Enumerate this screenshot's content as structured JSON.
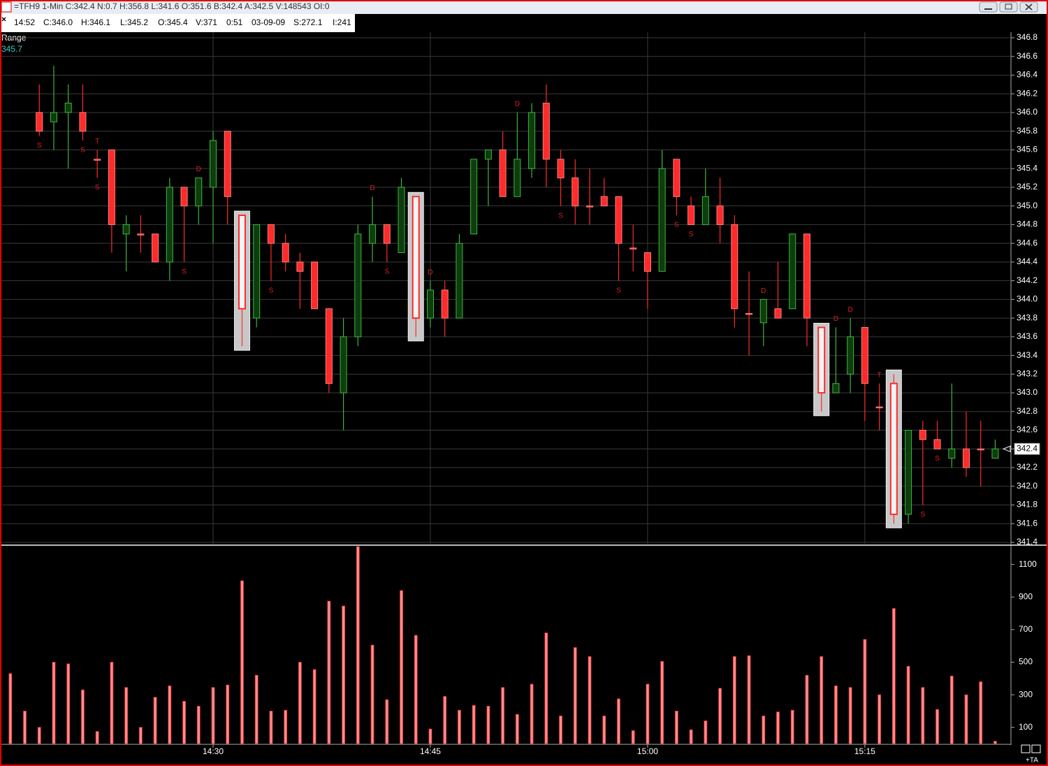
{
  "window": {
    "title": "=TFH9 1-Min C:342.4 N:0.7 H:356.8 L:341.6 O:351.6 B:342.4 A:342.5 V:148543 OI:0"
  },
  "info_bar": [
    "14:52",
    "C:346.0",
    "H:346.1",
    "L:345.2",
    "O:345.4",
    "V:371",
    "0:51",
    "03-09-09",
    "S:272.1",
    "I:241"
  ],
  "indicator": {
    "name": "Range",
    "value": 345.7
  },
  "footer": "+TA",
  "chart_data": [
    {
      "type": "candlestick",
      "open": [
        null,
        null,
        346.0,
        345.9,
        346.0,
        346.0,
        345.5,
        345.6,
        344.7,
        344.7,
        344.7,
        344.4,
        345.2,
        345.0,
        345.2,
        345.8,
        344.9,
        343.8,
        344.8,
        344.6,
        344.4,
        344.4,
        343.9,
        343.0,
        343.6,
        344.6,
        344.8,
        344.5,
        345.1,
        343.8,
        344.1,
        343.8,
        344.7,
        345.5,
        345.6,
        345.1,
        345.4,
        346.1,
        345.5,
        345.3,
        345.0,
        345.1,
        345.1,
        344.55,
        344.5,
        344.3,
        345.5,
        345.0,
        344.8,
        345.0,
        344.8,
        343.85,
        343.75,
        343.9,
        343.9,
        344.7,
        343.7,
        343.0,
        343.2,
        343.7,
        342.85,
        343.1,
        341.7,
        342.6,
        342.5,
        342.3,
        342.4,
        342.4,
        342.3
      ],
      "high": [
        null,
        null,
        346.3,
        346.5,
        346.3,
        346.3,
        345.6,
        345.6,
        344.9,
        344.9,
        344.7,
        345.3,
        345.2,
        345.3,
        345.8,
        345.8,
        344.9,
        344.8,
        344.8,
        344.7,
        344.5,
        344.4,
        343.9,
        343.8,
        344.8,
        345.1,
        344.8,
        345.3,
        345.1,
        344.2,
        344.2,
        344.7,
        345.5,
        345.6,
        345.8,
        346.0,
        346.1,
        346.3,
        345.6,
        345.5,
        345.4,
        345.3,
        345.1,
        344.8,
        344.5,
        345.6,
        345.5,
        345.1,
        345.4,
        345.3,
        344.9,
        344.3,
        344.0,
        344.4,
        344.7,
        344.7,
        343.7,
        343.7,
        343.8,
        343.7,
        343.1,
        343.2,
        342.6,
        342.7,
        342.7,
        343.1,
        342.8,
        342.7,
        342.5
      ],
      "low": [
        null,
        null,
        345.75,
        345.6,
        345.4,
        345.7,
        345.3,
        344.5,
        344.3,
        344.5,
        344.4,
        344.2,
        344.4,
        344.8,
        344.6,
        344.8,
        343.5,
        343.7,
        344.2,
        344.3,
        343.9,
        343.9,
        343.0,
        342.6,
        343.5,
        344.4,
        344.4,
        344.5,
        343.6,
        343.7,
        343.6,
        343.8,
        344.7,
        345.0,
        345.1,
        345.1,
        345.3,
        345.2,
        345.0,
        344.8,
        344.8,
        345.0,
        344.2,
        344.3,
        343.9,
        344.3,
        344.9,
        344.8,
        344.8,
        344.6,
        343.7,
        343.4,
        343.5,
        343.8,
        343.9,
        343.5,
        342.8,
        343.0,
        343.0,
        342.7,
        342.6,
        341.6,
        341.6,
        341.8,
        342.4,
        342.2,
        342.1,
        342.0,
        342.3
      ],
      "close": [
        null,
        null,
        345.8,
        346.0,
        346.1,
        345.8,
        345.5,
        344.8,
        344.8,
        344.7,
        344.4,
        345.2,
        345.0,
        345.3,
        345.7,
        345.1,
        343.9,
        344.8,
        344.6,
        344.4,
        344.3,
        343.9,
        343.1,
        343.6,
        344.7,
        344.8,
        344.6,
        345.2,
        343.8,
        344.1,
        343.8,
        344.6,
        345.5,
        345.6,
        345.1,
        345.5,
        346.0,
        345.5,
        345.3,
        345.0,
        345.0,
        345.0,
        344.6,
        344.55,
        344.3,
        345.4,
        345.1,
        344.8,
        345.1,
        344.8,
        343.9,
        343.85,
        344.0,
        343.8,
        344.7,
        343.8,
        343.0,
        343.1,
        343.6,
        343.1,
        342.85,
        341.7,
        342.6,
        342.5,
        342.4,
        342.4,
        342.2,
        342.4,
        342.4
      ],
      "signals": [
        null,
        null,
        [
          "S"
        ],
        null,
        null,
        [
          "S"
        ],
        [
          "T",
          "S"
        ],
        null,
        null,
        null,
        null,
        null,
        [
          "S"
        ],
        [
          "D"
        ],
        null,
        null,
        null,
        null,
        [
          "S"
        ],
        null,
        null,
        null,
        null,
        null,
        null,
        [
          "D"
        ],
        [
          "S"
        ],
        null,
        null,
        [
          "D"
        ],
        null,
        null,
        null,
        null,
        null,
        [
          "D"
        ],
        null,
        null,
        [
          "S"
        ],
        null,
        null,
        null,
        [
          "S"
        ],
        null,
        null,
        null,
        [
          "S"
        ],
        [
          "S"
        ],
        null,
        null,
        null,
        null,
        [
          "D"
        ],
        null,
        null,
        null,
        null,
        [
          "D"
        ],
        [
          "D"
        ],
        null,
        [
          "T"
        ],
        null,
        null,
        [
          "S"
        ],
        [
          "S"
        ],
        null,
        null,
        null,
        null
      ],
      "highlight": [
        16,
        28,
        56,
        61
      ],
      "up_color": "#3fb53f",
      "down_color": "#ff2a2a",
      "last_price": 342.4,
      "ylim": [
        341.4,
        346.8
      ],
      "yticks": [
        341.4,
        341.6,
        341.8,
        {
          "value": 342,
          "label": "342.0"
        },
        342.2,
        342.4,
        342.6,
        342.8,
        {
          "value": 343,
          "label": "343.0"
        },
        343.2,
        343.4,
        343.6,
        343.8,
        {
          "value": 344,
          "label": "344.0"
        },
        344.2,
        344.4,
        344.6,
        344.8,
        {
          "value": 345,
          "label": "345.0"
        },
        345.2,
        345.4,
        345.6,
        345.8,
        {
          "value": 346,
          "label": "346.0"
        },
        346.2,
        346.4,
        346.6,
        346.8
      ],
      "grid": true
    },
    {
      "type": "bar",
      "x": [
        null,
        null,
        null,
        null,
        null,
        null,
        null,
        null,
        null,
        null,
        null,
        null,
        null,
        null,
        "14:30",
        null,
        null,
        null,
        null,
        null,
        null,
        null,
        null,
        null,
        null,
        null,
        null,
        null,
        null,
        "14:45",
        null,
        null,
        null,
        null,
        null,
        null,
        null,
        null,
        null,
        null,
        null,
        null,
        null,
        null,
        "15:00",
        null,
        null,
        null,
        null,
        null,
        null,
        null,
        null,
        null,
        null,
        null,
        null,
        null,
        null,
        "15:15",
        null,
        null,
        null,
        null,
        null,
        null,
        null,
        null,
        null
      ],
      "values": [
        430,
        200,
        100,
        500,
        490,
        330,
        75,
        500,
        345,
        100,
        285,
        355,
        260,
        230,
        345,
        360,
        1000,
        420,
        200,
        205,
        500,
        455,
        875,
        845,
        1210,
        605,
        270,
        940,
        665,
        90,
        290,
        205,
        235,
        230,
        345,
        180,
        365,
        680,
        170,
        590,
        535,
        170,
        275,
        80,
        365,
        505,
        200,
        85,
        140,
        340,
        535,
        540,
        170,
        195,
        205,
        420,
        535,
        355,
        345,
        640,
        300,
        830,
        475,
        345,
        210,
        415,
        300,
        380,
        15
      ],
      "color": "#ff8c8c",
      "ylim": [
        0,
        1210
      ],
      "yticks": [
        100,
        300,
        500,
        700,
        900,
        1100
      ]
    }
  ]
}
